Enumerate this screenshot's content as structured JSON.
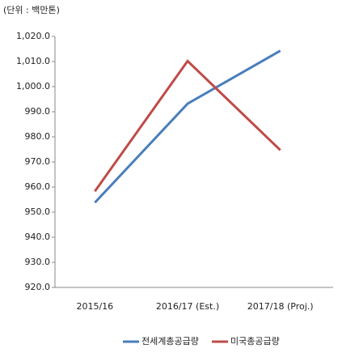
{
  "chart_data": {
    "type": "line",
    "unit_label": "(단위 : 백만톤)",
    "categories": [
      "2015/16",
      "2016/17 (Est.)",
      "2017/18 (Proj.)"
    ],
    "series": [
      {
        "name": "전세계총공급량",
        "color": "#4a7ebb",
        "values": [
          953.8,
          993.2,
          1014.3
        ]
      },
      {
        "name": "미국총공급량",
        "color": "#be4b48",
        "values": [
          958.3,
          1010.2,
          974.7
        ]
      }
    ],
    "ylim": [
      920,
      1020
    ],
    "yticks": [
      {
        "value": 920,
        "label": "920.0"
      },
      {
        "value": 930,
        "label": "930.0"
      },
      {
        "value": 940,
        "label": "940.0"
      },
      {
        "value": 950,
        "label": "950.0"
      },
      {
        "value": 960,
        "label": "960.0"
      },
      {
        "value": 970,
        "label": "970.0"
      },
      {
        "value": 980,
        "label": "980.0"
      },
      {
        "value": 990,
        "label": "990.0"
      },
      {
        "value": 1000,
        "label": "1,000.0"
      },
      {
        "value": 1010,
        "label": "1,010.0"
      },
      {
        "value": 1020,
        "label": "1,020.0"
      }
    ],
    "grid": false,
    "legend": "bottom"
  }
}
